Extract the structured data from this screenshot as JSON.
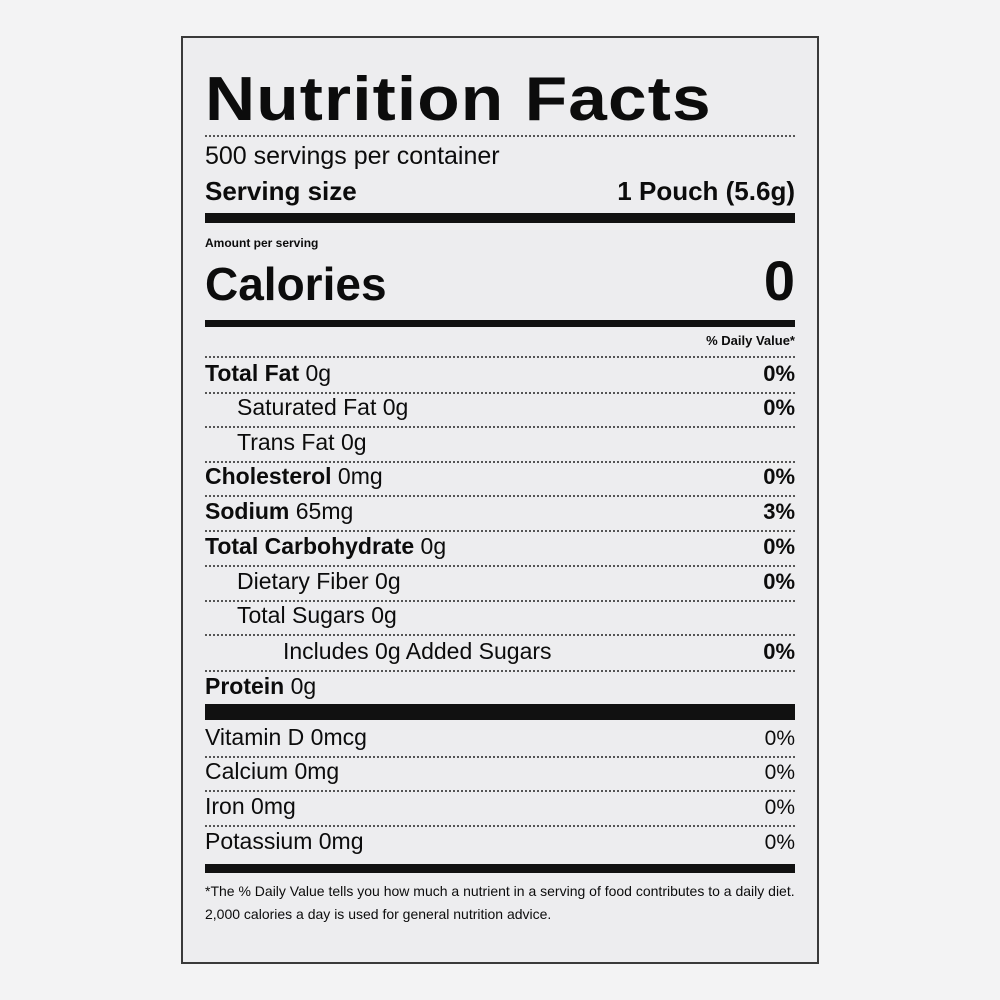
{
  "title": "Nutrition Facts",
  "servings_per_container": "500 servings per container",
  "serving_size": {
    "label": "Serving size",
    "value": "1 Pouch (5.6g)"
  },
  "amount_per_serving": "Amount per serving",
  "calories": {
    "label": "Calories",
    "value": "0"
  },
  "daily_value_header": "% Daily Value*",
  "nutrients": [
    {
      "name": "Total Fat",
      "amount": "0g",
      "dv": "0%"
    },
    {
      "name": "Saturated Fat",
      "amount": "0g",
      "dv": "0%"
    },
    {
      "name": "Trans Fat",
      "amount": "0g",
      "dv": ""
    },
    {
      "name": "Cholesterol",
      "amount": "0mg",
      "dv": "0%"
    },
    {
      "name": "Sodium",
      "amount": "65mg",
      "dv": "3%"
    },
    {
      "name": "Total Carbohydrate",
      "amount": "0g",
      "dv": "0%"
    },
    {
      "name": "Dietary Fiber",
      "amount": "0g",
      "dv": "0%"
    },
    {
      "name": "Total Sugars",
      "amount": "0g",
      "dv": ""
    },
    {
      "name": "Includes 0g Added Sugars",
      "amount": "",
      "dv": "0%"
    },
    {
      "name": "Protein",
      "amount": "0g",
      "dv": ""
    }
  ],
  "vitamins": [
    {
      "name": "Vitamin D",
      "amount": "0mcg",
      "dv": "0%"
    },
    {
      "name": "Calcium",
      "amount": "0mg",
      "dv": "0%"
    },
    {
      "name": "Iron",
      "amount": "0mg",
      "dv": "0%"
    },
    {
      "name": "Potassium",
      "amount": "0mg",
      "dv": "0%"
    }
  ],
  "footnote": "*The % Daily Value tells you how much a nutrient in a serving of food contributes to a daily diet. 2,000 calories a day is used for general nutrition advice."
}
